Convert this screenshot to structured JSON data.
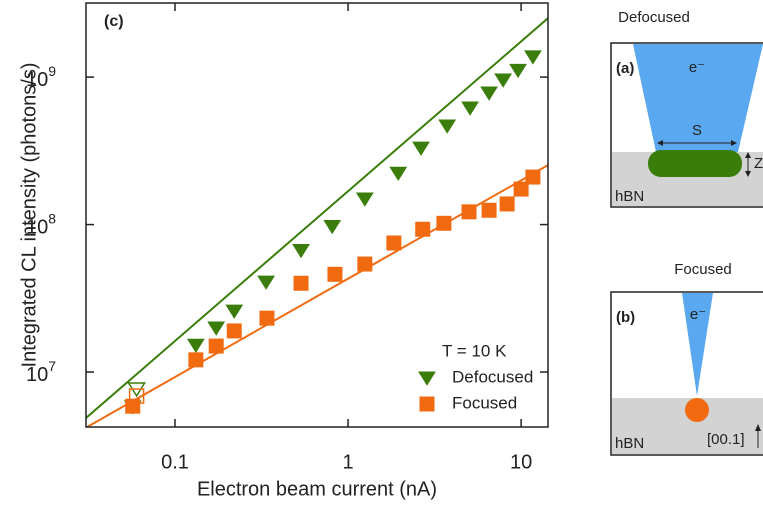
{
  "chart_data": {
    "type": "scatter",
    "annotation": "(c)",
    "x_label": "Electron beam current (nA)",
    "y_label": "Integrated CL intensity (photons/s)",
    "xlog": true,
    "ylog": true,
    "xlim": [
      0.0306,
      14.3
    ],
    "ylim": [
      4240000,
      3180000000
    ],
    "xticks": [
      0.1,
      1,
      10
    ],
    "yticks": [
      {
        "value": 10000000,
        "label": "10",
        "exponent": "7"
      },
      {
        "value": 100000000,
        "label": "10",
        "exponent": "8"
      },
      {
        "value": 1000000000,
        "label": "10",
        "exponent": "9"
      }
    ],
    "legend_title": "T = 10 K",
    "legend": "lower right",
    "series": [
      {
        "name": "Defocused",
        "color": "#3a7d0a",
        "marker": "triangle-down",
        "x": [
          0.057,
          0.132,
          0.173,
          0.22,
          0.336,
          0.535,
          0.81,
          1.25,
          1.95,
          2.64,
          3.74,
          5.07,
          6.53,
          7.87,
          9.6,
          11.7
        ],
        "values": [
          5800000,
          15200000,
          19900000,
          25900000,
          40700000,
          66700000,
          97000000,
          149000000,
          223000000,
          330000000,
          466000000,
          617000000,
          780000000,
          955000000,
          1110000000,
          1370000000
        ],
        "open_x": [
          0.06
        ],
        "open_values": [
          7670000
        ],
        "fit_x": [
          0.0306,
          14.3
        ],
        "fit_values": [
          4880000,
          2510000000
        ]
      },
      {
        "name": "Focused",
        "color": "#f26a10",
        "marker": "square",
        "x": [
          0.057,
          0.132,
          0.173,
          0.22,
          0.34,
          0.535,
          0.84,
          1.25,
          1.84,
          2.7,
          3.58,
          5.0,
          6.53,
          8.3,
          10,
          11.7
        ],
        "values": [
          5870000,
          12100000,
          15000000,
          19000000,
          23200000,
          40000000,
          46000000,
          54000000,
          75000000,
          93000000,
          102000000,
          122000000,
          125000000,
          138000000,
          174000000,
          210000000
        ],
        "open_x": [
          0.06
        ],
        "open_values": [
          6870000
        ],
        "fit_x": [
          0.0306,
          14.3
        ],
        "fit_values": [
          4200000,
          253000000
        ]
      }
    ]
  },
  "diagrams": [
    {
      "title": "Defocused",
      "label": "(a)",
      "beam": "e⁻",
      "width_label": "S",
      "depth_label": "Z",
      "material": "hBN"
    },
    {
      "title": "Focused",
      "label": "(b)",
      "beam": "e⁻",
      "material": "hBN",
      "axis_label": "[00.1]"
    }
  ]
}
